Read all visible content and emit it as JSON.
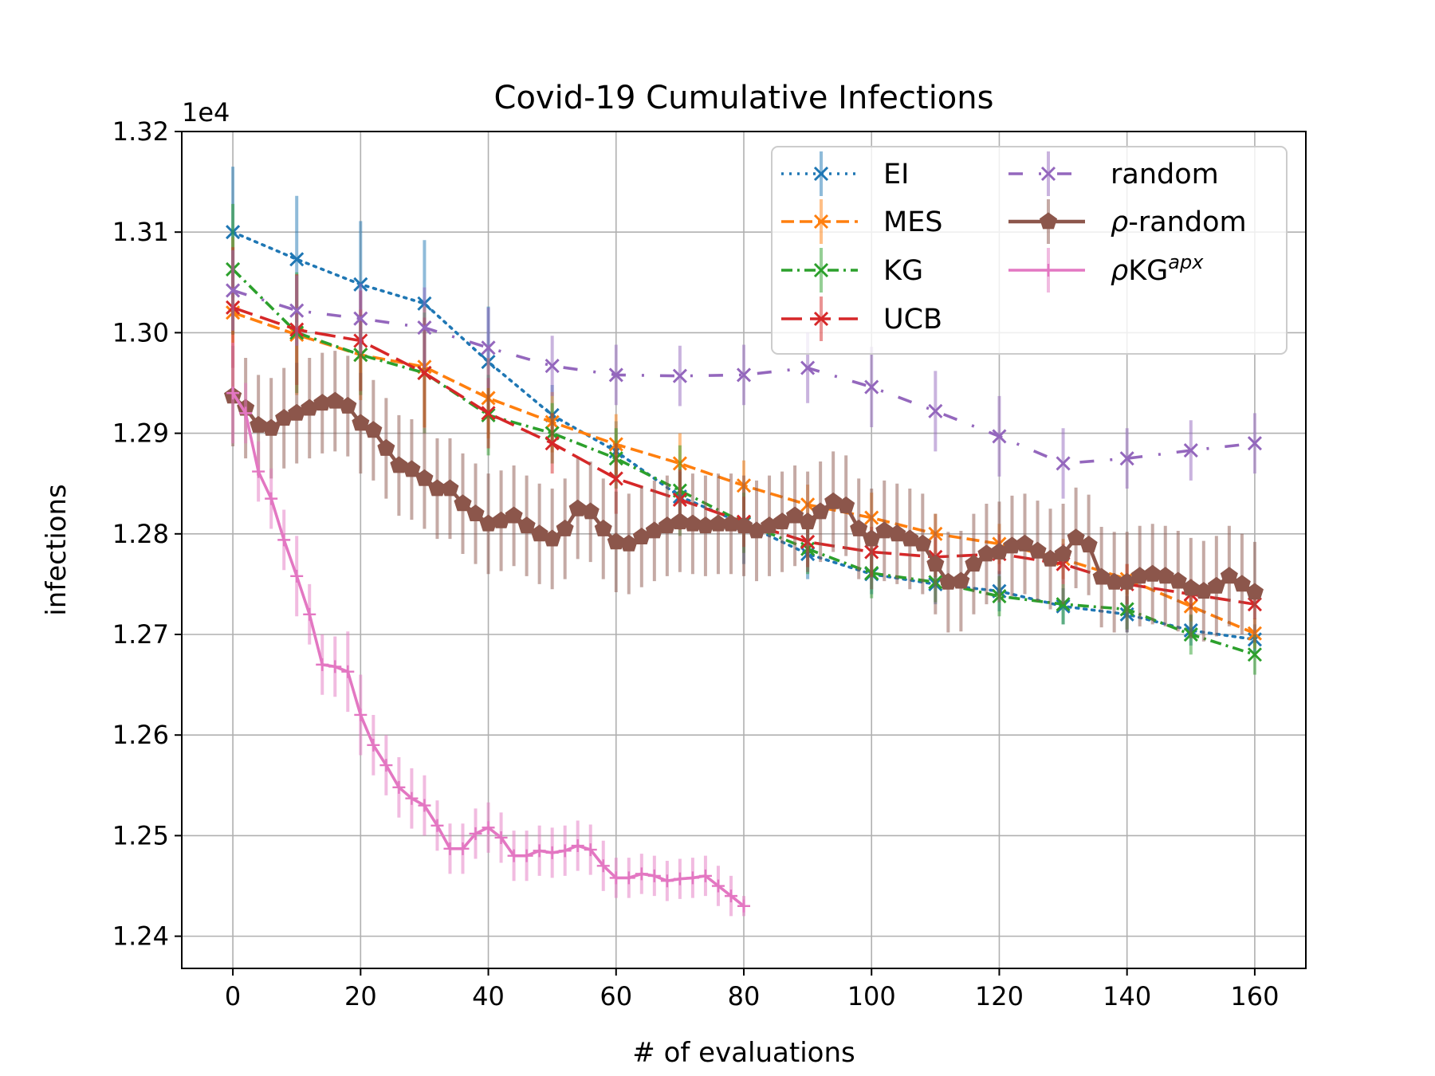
{
  "chart_data": {
    "type": "line",
    "title": "Covid-19 Cumulative Infections",
    "xlabel": "# of evaluations",
    "ylabel": "infections",
    "y_offset_label": "1e4",
    "xlim": [
      -8,
      168
    ],
    "ylim": [
      1.2368,
      1.32
    ],
    "x_ticks": [
      0,
      20,
      40,
      60,
      80,
      100,
      120,
      140,
      160
    ],
    "x_tick_labels": [
      "0",
      "20",
      "40",
      "60",
      "80",
      "100",
      "120",
      "140",
      "160"
    ],
    "y_ticks": [
      1.24,
      1.25,
      1.26,
      1.27,
      1.28,
      1.29,
      1.3,
      1.31,
      1.32
    ],
    "y_tick_labels": [
      "1.24",
      "1.25",
      "1.26",
      "1.27",
      "1.28",
      "1.29",
      "1.30",
      "1.31",
      "1.32"
    ],
    "grid": true,
    "legend_position": "top-right",
    "series": [
      {
        "name": "EI",
        "label": "EI",
        "color": "#1f77b4",
        "dash": "dot",
        "marker": "x",
        "x": [
          0,
          10,
          20,
          30,
          40,
          50,
          60,
          70,
          80,
          90,
          100,
          110,
          120,
          130,
          140,
          150,
          160
        ],
        "y": [
          1.31,
          1.3073,
          1.3048,
          1.3029,
          1.2971,
          1.2918,
          1.2882,
          1.2837,
          1.281,
          1.278,
          1.276,
          1.275,
          1.2743,
          1.2728,
          1.272,
          1.2704,
          1.2695
        ],
        "err": [
          0.0065,
          0.0063,
          0.0063,
          0.0063,
          0.0055,
          0.003,
          0.003,
          0.003,
          0.004,
          0.0025,
          0.002,
          0.002,
          0.002,
          0.0018,
          0.0018,
          0.0015,
          0.0015
        ]
      },
      {
        "name": "MES",
        "label": "MES",
        "color": "#ff7f0e",
        "dash": "dash",
        "marker": "x",
        "x": [
          0,
          10,
          20,
          30,
          40,
          50,
          60,
          70,
          80,
          90,
          100,
          110,
          120,
          130,
          140,
          150,
          160
        ],
        "y": [
          1.302,
          1.2998,
          1.2978,
          1.2966,
          1.2935,
          1.2911,
          1.2889,
          1.287,
          1.2848,
          1.2829,
          1.2816,
          1.28,
          1.279,
          1.2775,
          1.2755,
          1.2728,
          1.2701
        ],
        "err": [
          0.0075,
          0.006,
          0.0045,
          0.006,
          0.004,
          0.003,
          0.003,
          0.003,
          0.0025,
          0.002,
          0.0025,
          0.002,
          0.002,
          0.002,
          0.0015,
          0.0015,
          0.0015
        ]
      },
      {
        "name": "KG",
        "label": "KG",
        "color": "#2ca02c",
        "dash": "dashdot",
        "marker": "x",
        "x": [
          0,
          10,
          20,
          30,
          40,
          50,
          60,
          70,
          80,
          90,
          100,
          110,
          120,
          130,
          140,
          150,
          160
        ],
        "y": [
          1.3063,
          1.3,
          1.2978,
          1.296,
          1.2918,
          1.29,
          1.2875,
          1.2843,
          1.2811,
          1.2785,
          1.2761,
          1.2752,
          1.2738,
          1.273,
          1.2725,
          1.27,
          1.268
        ],
        "err": [
          0.0065,
          0.006,
          0.004,
          0.006,
          0.004,
          0.003,
          0.003,
          0.0045,
          0.003,
          0.0025,
          0.0025,
          0.002,
          0.002,
          0.002,
          0.002,
          0.002,
          0.002
        ]
      },
      {
        "name": "UCB",
        "label": "UCB",
        "color": "#d62728",
        "dash": "longdash",
        "marker": "x",
        "x": [
          0,
          10,
          20,
          30,
          40,
          50,
          60,
          70,
          80,
          90,
          100,
          110,
          120,
          130,
          140,
          150,
          160
        ],
        "y": [
          1.3025,
          1.3003,
          1.2992,
          1.296,
          1.292,
          1.289,
          1.2855,
          1.2834,
          1.2812,
          1.2792,
          1.2782,
          1.2777,
          1.278,
          1.277,
          1.275,
          1.274,
          1.273
        ],
        "err": [
          0.006,
          0.0055,
          0.005,
          0.0055,
          0.0035,
          0.003,
          0.0035,
          0.003,
          0.0025,
          0.0025,
          0.0025,
          0.002,
          0.002,
          0.002,
          0.002,
          0.0015,
          0.0015
        ]
      },
      {
        "name": "random",
        "label": "random",
        "color": "#9467bd",
        "dash": "dashdotlong",
        "marker": "x",
        "x": [
          0,
          10,
          20,
          30,
          40,
          50,
          60,
          70,
          80,
          90,
          100,
          110,
          120,
          130,
          140,
          150,
          160
        ],
        "y": [
          1.3042,
          1.3022,
          1.3014,
          1.3005,
          1.2985,
          1.2967,
          1.2958,
          1.2957,
          1.2958,
          1.2965,
          1.2946,
          1.2922,
          1.2897,
          1.287,
          1.2875,
          1.2883,
          1.289
        ],
        "err": [
          0.004,
          0.0035,
          0.0035,
          0.004,
          0.004,
          0.003,
          0.003,
          0.003,
          0.003,
          0.0035,
          0.004,
          0.004,
          0.004,
          0.0035,
          0.003,
          0.003,
          0.003
        ]
      },
      {
        "name": "ρ-random",
        "label": "-random",
        "color": "#8c564b",
        "dash": "solid",
        "marker": "pentagon",
        "x": [
          0,
          2,
          4,
          6,
          8,
          10,
          12,
          14,
          16,
          18,
          20,
          22,
          24,
          26,
          28,
          30,
          32,
          34,
          36,
          38,
          40,
          42,
          44,
          46,
          48,
          50,
          52,
          54,
          56,
          58,
          60,
          62,
          64,
          66,
          68,
          70,
          72,
          74,
          76,
          78,
          80,
          82,
          84,
          86,
          88,
          90,
          92,
          94,
          96,
          98,
          100,
          102,
          104,
          106,
          108,
          110,
          112,
          114,
          116,
          118,
          120,
          122,
          124,
          126,
          128,
          130,
          132,
          134,
          136,
          138,
          140,
          142,
          144,
          146,
          148,
          150,
          152,
          154,
          156,
          158,
          160
        ],
        "y": [
          1.2937,
          1.2925,
          1.2908,
          1.2905,
          1.2915,
          1.292,
          1.2925,
          1.293,
          1.2932,
          1.2927,
          1.291,
          1.2903,
          1.2885,
          1.2868,
          1.2864,
          1.2855,
          1.2845,
          1.2845,
          1.283,
          1.282,
          1.281,
          1.2813,
          1.2818,
          1.2808,
          1.28,
          1.2795,
          1.2805,
          1.2825,
          1.2822,
          1.2805,
          1.2792,
          1.279,
          1.2797,
          1.2803,
          1.2808,
          1.2812,
          1.281,
          1.2808,
          1.281,
          1.281,
          1.2808,
          1.2803,
          1.2808,
          1.2812,
          1.2818,
          1.2812,
          1.2822,
          1.2832,
          1.2828,
          1.2805,
          1.2795,
          1.2803,
          1.28,
          1.2795,
          1.279,
          1.277,
          1.2752,
          1.2753,
          1.277,
          1.278,
          1.2782,
          1.2788,
          1.279,
          1.2783,
          1.2775,
          1.278,
          1.2796,
          1.2789,
          1.2757,
          1.2752,
          1.2752,
          1.2758,
          1.276,
          1.2758,
          1.2753,
          1.2746,
          1.2743,
          1.2748,
          1.2758,
          1.275,
          1.2742
        ],
        "err": [
          0.005,
          0.005,
          0.005,
          0.005,
          0.005,
          0.005,
          0.005,
          0.005,
          0.005,
          0.005,
          0.005,
          0.005,
          0.005,
          0.005,
          0.005,
          0.005,
          0.005,
          0.005,
          0.005,
          0.005,
          0.005,
          0.005,
          0.005,
          0.005,
          0.005,
          0.005,
          0.005,
          0.005,
          0.005,
          0.005,
          0.005,
          0.005,
          0.005,
          0.005,
          0.005,
          0.005,
          0.005,
          0.005,
          0.005,
          0.005,
          0.005,
          0.005,
          0.005,
          0.005,
          0.005,
          0.005,
          0.005,
          0.005,
          0.005,
          0.005,
          0.005,
          0.005,
          0.005,
          0.005,
          0.005,
          0.005,
          0.005,
          0.005,
          0.005,
          0.005,
          0.005,
          0.005,
          0.005,
          0.005,
          0.005,
          0.005,
          0.005,
          0.005,
          0.005,
          0.005,
          0.005,
          0.005,
          0.005,
          0.005,
          0.005,
          0.005,
          0.005,
          0.005,
          0.005,
          0.005,
          0.005
        ]
      },
      {
        "name": "ρKG^apx",
        "label": "KG",
        "superscript": "apx",
        "color": "#e377c2",
        "dash": "solid",
        "marker": "plus",
        "x": [
          0,
          2,
          4,
          6,
          8,
          10,
          12,
          14,
          16,
          18,
          20,
          22,
          24,
          26,
          28,
          30,
          32,
          34,
          36,
          38,
          40,
          42,
          44,
          46,
          48,
          50,
          52,
          54,
          56,
          58,
          60,
          62,
          64,
          66,
          68,
          70,
          72,
          74,
          76,
          78,
          80
        ],
        "y": [
          1.294,
          1.292,
          1.2862,
          1.2835,
          1.2794,
          1.2758,
          1.272,
          1.267,
          1.2668,
          1.2663,
          1.262,
          1.259,
          1.257,
          1.2548,
          1.2537,
          1.253,
          1.251,
          1.2487,
          1.2487,
          1.2502,
          1.2508,
          1.2498,
          1.248,
          1.248,
          1.2485,
          1.2483,
          1.2485,
          1.249,
          1.2486,
          1.247,
          1.2458,
          1.2458,
          1.2462,
          1.246,
          1.2455,
          1.2457,
          1.2458,
          1.246,
          1.245,
          1.244,
          1.243
        ],
        "err": [
          0.005,
          0.003,
          0.003,
          0.003,
          0.003,
          0.004,
          0.003,
          0.003,
          0.003,
          0.004,
          0.004,
          0.003,
          0.003,
          0.003,
          0.003,
          0.003,
          0.0025,
          0.0025,
          0.0025,
          0.0025,
          0.0025,
          0.0025,
          0.0025,
          0.0025,
          0.0025,
          0.0025,
          0.0025,
          0.0025,
          0.0025,
          0.0025,
          0.002,
          0.002,
          0.002,
          0.002,
          0.002,
          0.002,
          0.002,
          0.002,
          0.002,
          0.002,
          0.001
        ]
      }
    ]
  }
}
